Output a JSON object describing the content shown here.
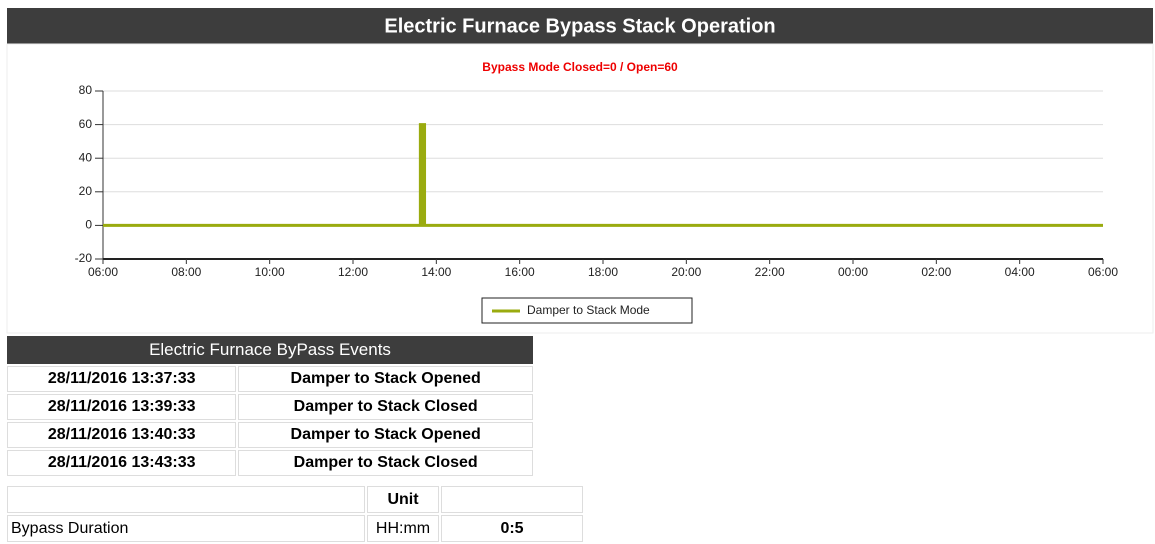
{
  "header": {
    "title": "Electric Furnace Bypass Stack Operation"
  },
  "chart_data": {
    "type": "line",
    "subtitle": "Bypass Mode Closed=0 / Open=60",
    "x": [
      0,
      7.617,
      7.617,
      7.65,
      7.65,
      7.667,
      7.667,
      7.717,
      7.717,
      24
    ],
    "series": [
      {
        "name": "Damper to Stack Mode",
        "color": "#9aab0f",
        "values": [
          0,
          0,
          60,
          60,
          0,
          0,
          60,
          60,
          0,
          0
        ]
      }
    ],
    "xlim": [
      0,
      24
    ],
    "xticks": [
      {
        "value": 0,
        "label": "06:00"
      },
      {
        "value": 2,
        "label": "08:00"
      },
      {
        "value": 4,
        "label": "10:00"
      },
      {
        "value": 6,
        "label": "12:00"
      },
      {
        "value": 8,
        "label": "14:00"
      },
      {
        "value": 10,
        "label": "16:00"
      },
      {
        "value": 12,
        "label": "18:00"
      },
      {
        "value": 14,
        "label": "20:00"
      },
      {
        "value": 16,
        "label": "22:00"
      },
      {
        "value": 18,
        "label": "00:00"
      },
      {
        "value": 20,
        "label": "02:00"
      },
      {
        "value": 22,
        "label": "04:00"
      },
      {
        "value": 24,
        "label": "06:00"
      }
    ],
    "ylim": [
      -20,
      80
    ],
    "yticks": [
      -20,
      0,
      20,
      40,
      60,
      80
    ],
    "grid": true,
    "legend": "bottom"
  },
  "events_table": {
    "title": "Electric Furnace ByPass Events",
    "rows": [
      [
        "28/11/2016 13:37:33",
        "Damper to Stack Opened"
      ],
      [
        "28/11/2016 13:39:33",
        "Damper to Stack Closed"
      ],
      [
        "28/11/2016 13:40:33",
        "Damper to Stack Opened"
      ],
      [
        "28/11/2016 13:43:33",
        "Damper to Stack Closed"
      ]
    ]
  },
  "summary_table": {
    "unit_header": "Unit",
    "rows": [
      [
        "Bypass Duration",
        "HH:mm",
        "0:5"
      ]
    ]
  }
}
